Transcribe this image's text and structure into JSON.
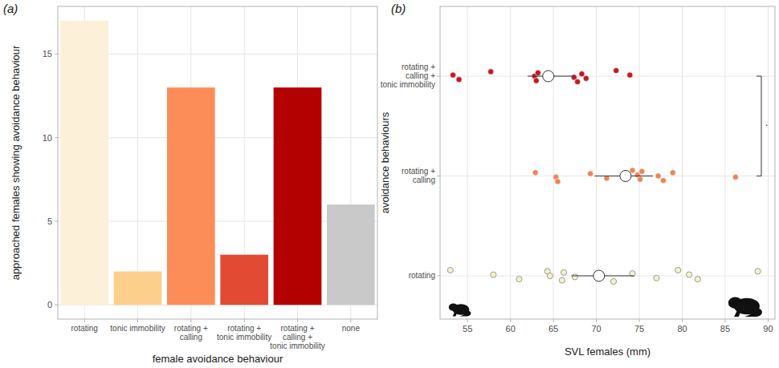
{
  "chart_data": [
    {
      "type": "bar",
      "title": "(a)",
      "x_label": "female avoidance behaviour",
      "y_label": "approached females showing avoidance behaviour",
      "categories": [
        "rotating",
        "tonic immobility",
        "rotating + calling",
        "rotating + tonic immobility",
        "rotating + calling + tonic immobility",
        "none"
      ],
      "values": [
        17,
        2,
        13,
        3,
        13,
        6
      ],
      "colors": [
        "#fdf0d8",
        "#fdcf8c",
        "#fc8d59",
        "#e34a33",
        "#b30000",
        "#c9c9c9"
      ],
      "ylim": [
        -0.85,
        17.85
      ],
      "yticks": [
        0,
        5,
        10,
        15
      ],
      "grid": true
    },
    {
      "type": "strip",
      "title": "(b)",
      "x_label": "SVL females (mm)",
      "y_label": "avoidance behaviours",
      "orientation": "horizontal",
      "categories": [
        "rotating",
        "rotating + calling",
        "rotating + calling + tonic immobility"
      ],
      "values": [
        [
          53.0,
          58.0,
          61.0,
          64.3,
          64.6,
          66.0,
          66.2,
          67.5,
          72.0,
          74.2,
          77.0,
          79.5,
          80.8,
          81.8,
          88.8
        ],
        [
          62.9,
          65.3,
          65.5,
          69.3,
          71.2,
          74.2,
          74.8,
          75.1,
          75.3,
          77.2,
          77.8,
          78.9,
          86.2
        ],
        [
          53.3,
          54.0,
          57.7,
          62.8,
          63.0,
          63.2,
          67.4,
          67.8,
          68.3,
          68.8,
          72.3,
          73.9
        ]
      ],
      "means": [
        70.3,
        73.4,
        64.4
      ],
      "error_low": [
        67.1,
        69.8,
        62.0
      ],
      "error_high": [
        74.4,
        76.6,
        67.5
      ],
      "colors": [
        "#f6eed8",
        "#e8875a",
        "#c41a1e"
      ],
      "marker": "circle",
      "xlim": [
        51.8,
        90.8
      ],
      "xticks": [
        55,
        60,
        65,
        70,
        75,
        80,
        85,
        90
      ],
      "grid": true,
      "annotations": [
        {
          "text": ".",
          "between": [
            1,
            2
          ]
        }
      ]
    }
  ]
}
